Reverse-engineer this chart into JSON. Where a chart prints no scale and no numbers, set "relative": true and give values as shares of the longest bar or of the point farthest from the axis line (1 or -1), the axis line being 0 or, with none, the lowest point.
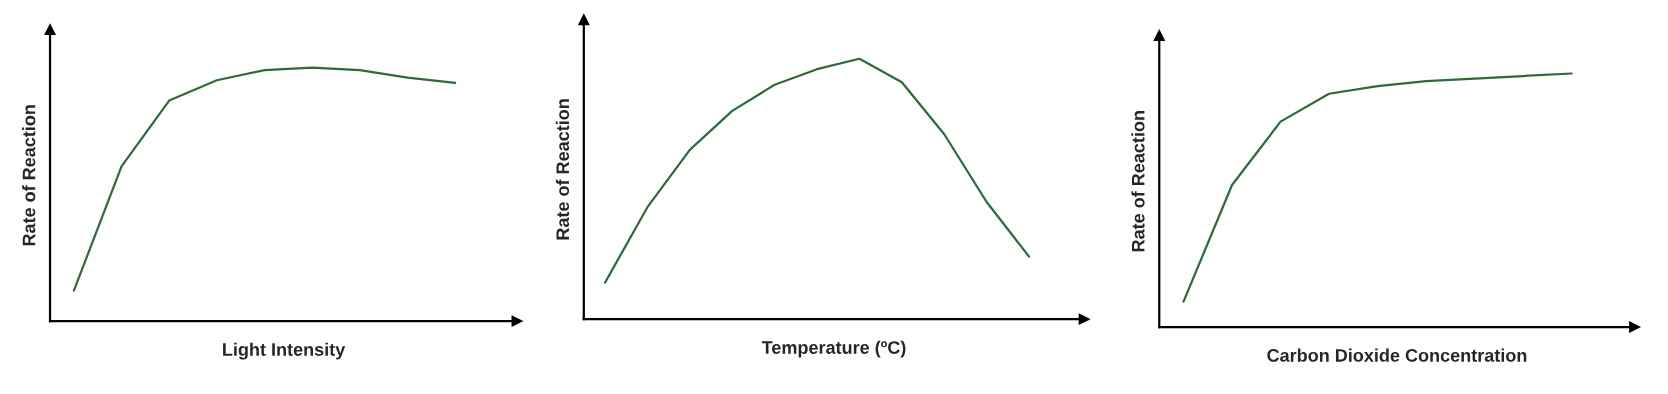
{
  "chart_data": [
    {
      "type": "line",
      "relative": true,
      "xlabel": "Light Intensity",
      "ylabel": "Rate of Reaction",
      "categories": [
        null,
        null,
        null,
        null,
        null,
        null,
        null,
        null,
        null
      ],
      "series": [
        {
          "color": "#2e6b3a",
          "values": [
            0.12,
            0.61,
            0.87,
            0.95,
            0.99,
            1.0,
            0.99,
            0.96,
            0.94
          ]
        }
      ]
    },
    {
      "type": "line",
      "relative": true,
      "xlabel": "Temperature (ºC)",
      "ylabel": "Rate of Reaction",
      "categories": [
        null,
        null,
        null,
        null,
        null,
        null,
        null,
        null,
        null,
        null,
        null
      ],
      "series": [
        {
          "color": "#2e6b3a",
          "values": [
            0.14,
            0.43,
            0.65,
            0.8,
            0.9,
            0.96,
            1.0,
            0.91,
            0.71,
            0.45,
            0.24
          ]
        }
      ]
    },
    {
      "type": "line",
      "relative": true,
      "xlabel": "Carbon Dioxide Concentration",
      "ylabel": "Rate of Reaction",
      "categories": [
        null,
        null,
        null,
        null,
        null,
        null,
        null,
        null,
        null
      ],
      "series": [
        {
          "color": "#2e6b3a",
          "values": [
            0.1,
            0.56,
            0.81,
            0.92,
            0.95,
            0.97,
            0.98,
            0.99,
            1.0
          ]
        }
      ]
    }
  ]
}
